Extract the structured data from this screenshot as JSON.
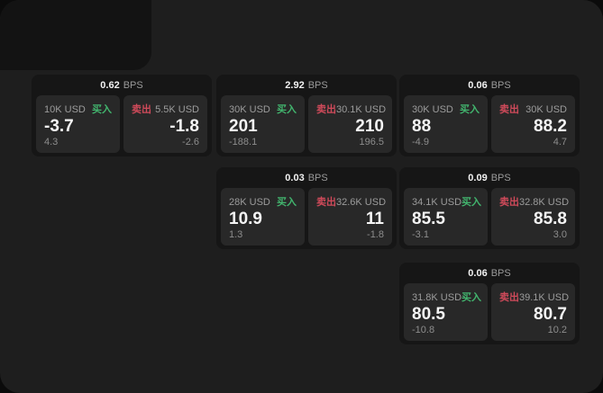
{
  "theme": {
    "buy_color": "#42b56e",
    "sell_color": "#cf4a5a",
    "panel_bg": "#1e1e1e",
    "card_bg": "#161616",
    "tile_bg": "#282828"
  },
  "labels": {
    "bps": "BPS",
    "buy": "买入",
    "sell": "卖出"
  },
  "cards": [
    {
      "bps": "0.62",
      "buy": {
        "size": "10K USD",
        "price": "-3.7",
        "delta": "4.3"
      },
      "sell": {
        "size": "5.5K USD",
        "price": "-1.8",
        "delta": "-2.6"
      }
    },
    {
      "bps": "2.92",
      "buy": {
        "size": "30K USD",
        "price": "201",
        "delta": "-188.1"
      },
      "sell": {
        "size": "30.1K USD",
        "price": "210",
        "delta": "196.5"
      }
    },
    {
      "bps": "0.06",
      "buy": {
        "size": "30K USD",
        "price": "88",
        "delta": "-4.9"
      },
      "sell": {
        "size": "30K USD",
        "price": "88.2",
        "delta": "4.7"
      }
    },
    {
      "bps": "0.03",
      "buy": {
        "size": "28K USD",
        "price": "10.9",
        "delta": "1.3"
      },
      "sell": {
        "size": "32.6K USD",
        "price": "11",
        "delta": "-1.8"
      }
    },
    {
      "bps": "0.09",
      "buy": {
        "size": "34.1K USD",
        "price": "85.5",
        "delta": "-3.1"
      },
      "sell": {
        "size": "32.8K USD",
        "price": "85.8",
        "delta": "3.0"
      }
    },
    {
      "bps": "0.06",
      "buy": {
        "size": "31.8K USD",
        "price": "80.5",
        "delta": "-10.8"
      },
      "sell": {
        "size": "39.1K USD",
        "price": "80.7",
        "delta": "10.2"
      }
    }
  ]
}
